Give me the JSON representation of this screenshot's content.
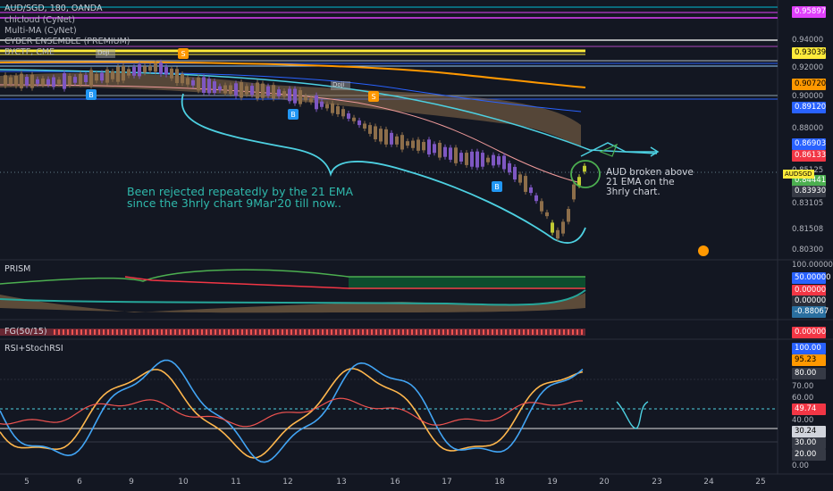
{
  "header": {
    "symbol": "AUD/SGD, 180, OANDA",
    "indicators": [
      "chicloud (CyNet)",
      "Multi-MA (CyNet)",
      "CYBER ENSEMBLE (PREMIUM)",
      "BYCTF, CME"
    ]
  },
  "price_axis": {
    "labels": [
      "0.94000",
      "0.92000",
      "0.90000",
      "0.88000",
      "0.85125",
      "0.83105",
      "0.81508",
      "0.80300"
    ],
    "tags": [
      {
        "text": "0.95897",
        "color": "#e040fb"
      },
      {
        "text": "0.93039",
        "color": "#ffeb3b",
        "fg": "#000"
      },
      {
        "text": "0.90720",
        "color": "#ff9800",
        "fg": "#000"
      },
      {
        "text": "0.89120",
        "color": "#2962ff"
      },
      {
        "text": "0.86903",
        "color": "#2962ff"
      },
      {
        "text": "0.86133",
        "color": "#f23645"
      },
      {
        "text": "0.84441",
        "color": "#4caf50"
      },
      {
        "text": "0.83930",
        "color": "#363a45"
      }
    ],
    "symbol_tag": "AUDSGD"
  },
  "prism_pane": {
    "title": "PRISM",
    "labels": [
      "100.00000"
    ],
    "tags": [
      {
        "text": "50.00000",
        "color": "#2962ff"
      },
      {
        "text": "0.00000",
        "color": "#f23645"
      },
      {
        "text": "0.00000",
        "color": "#2a2e39"
      },
      {
        "text": "-0.88067",
        "color": "#2a6f9f"
      }
    ]
  },
  "fg_pane": {
    "title": "FG(50/15)",
    "tags": [
      {
        "text": "0.00000",
        "color": "#f23645"
      }
    ]
  },
  "rsi_pane": {
    "title": "RSI+StochRSI",
    "labels": [
      "70.00",
      "60.00",
      "40.00",
      "0.00"
    ],
    "tags": [
      {
        "text": "100.00",
        "color": "#2962ff"
      },
      {
        "text": "95.23",
        "color": "#ff9800",
        "fg": "#000"
      },
      {
        "text": "80.00",
        "color": "#363a45"
      },
      {
        "text": "49.74",
        "color": "#f23645"
      },
      {
        "text": "30.24",
        "color": "#d1d4dc",
        "fg": "#000"
      },
      {
        "text": "30.00",
        "color": "#363a45"
      },
      {
        "text": "20.00",
        "color": "#363a45"
      }
    ]
  },
  "time_axis": [
    "5",
    "6",
    "9",
    "10",
    "11",
    "12",
    "13",
    "16",
    "17",
    "18",
    "19",
    "20",
    "23",
    "24",
    "25"
  ],
  "annotations": {
    "main": [
      "Been rejected repeatedly by the 21 EMA",
      "since the 3hrly chart 9Mar'20 till now.."
    ],
    "side": [
      "AUD broken above",
      "21 EMA on the",
      "3hrly chart."
    ],
    "labels": [
      "Doji",
      "Doji"
    ]
  },
  "colors": {
    "bg": "#131722",
    "annot": "#2fb9ac",
    "ema": "#4dd0e1"
  }
}
